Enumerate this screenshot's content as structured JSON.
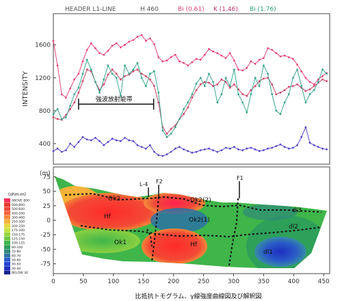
{
  "chart_data": [
    {
      "type": "line",
      "title_parts": [
        {
          "text": "HEADER L1-LINE",
          "color": "#555555"
        },
        {
          "text": "H 460",
          "color": "#555555"
        },
        {
          "text": "Bi (0.61)",
          "color": "#e0407a"
        },
        {
          "text": "K (1.46)",
          "color": "#c03070"
        },
        {
          "text": "Bi (1.76)",
          "color": "#2a9a7a"
        }
      ],
      "ylabel": "INTENSITY",
      "yticks": [
        400,
        800,
        1200,
        1600
      ],
      "ylim": [
        150,
        1980
      ],
      "xlim": [
        0,
        460
      ],
      "annotation": "強波放射能帯",
      "annotation_range": [
        42,
        167
      ],
      "annotation_y": 880,
      "series": [
        {
          "color": "#e6457a",
          "x": [
            0,
            7,
            14,
            21,
            28,
            35,
            42,
            49,
            56,
            63,
            70,
            77,
            84,
            91,
            98,
            105,
            112,
            119,
            126,
            133,
            140,
            147,
            154,
            161,
            168,
            175,
            182,
            189,
            196,
            203,
            210,
            217,
            224,
            231,
            238,
            245,
            252,
            259,
            266,
            273,
            280,
            287,
            294,
            301,
            308,
            315,
            322,
            329,
            336,
            343,
            350,
            357,
            364,
            371,
            378,
            385,
            392,
            399,
            406,
            413,
            420,
            427,
            434,
            441,
            448,
            455
          ],
          "values": [
            1650,
            1350,
            1000,
            960,
            1070,
            1180,
            1250,
            1400,
            1540,
            1620,
            1560,
            1500,
            1480,
            1530,
            1590,
            1620,
            1570,
            1600,
            1640,
            1660,
            1700,
            1720,
            1650,
            1680,
            1610,
            1450,
            1400,
            1410,
            1450,
            1480,
            1400,
            1380,
            1350,
            1390,
            1430,
            1420,
            1480,
            1550,
            1520,
            1500,
            1470,
            1440,
            1500,
            1410,
            1300,
            1290,
            1320,
            1400,
            1370,
            1420,
            1440,
            1560,
            1540,
            1500,
            1460,
            1470,
            1450,
            1430,
            1360,
            1280,
            1200,
            1150,
            1120,
            1180,
            1220,
            1260
          ]
        },
        {
          "color": "#cc4466",
          "x": [
            0,
            7,
            14,
            21,
            28,
            35,
            42,
            49,
            56,
            63,
            70,
            77,
            84,
            91,
            98,
            105,
            112,
            119,
            126,
            133,
            140,
            147,
            154,
            161,
            168,
            175,
            182,
            189,
            196,
            203,
            210,
            217,
            224,
            231,
            238,
            245,
            252,
            259,
            266,
            273,
            280,
            287,
            294,
            301,
            308,
            315,
            322,
            329,
            336,
            343,
            350,
            357,
            364,
            371,
            378,
            385,
            392,
            399,
            406,
            413,
            420,
            427,
            434,
            441,
            448,
            455
          ],
          "values": [
            720,
            700,
            690,
            750,
            820,
            900,
            1020,
            1160,
            1300,
            1280,
            1150,
            1050,
            1120,
            1240,
            1300,
            1250,
            1180,
            1220,
            1240,
            1280,
            1300,
            1250,
            1220,
            1180,
            1100,
            900,
            600,
            520,
            580,
            620,
            700,
            760,
            840,
            960,
            1050,
            1120,
            1150,
            1140,
            1100,
            1120,
            1180,
            1150,
            1080,
            1120,
            1060,
            1000,
            980,
            1050,
            1100,
            1160,
            1190,
            1200,
            1120,
            1000,
            1020,
            1050,
            1090,
            1100,
            1120,
            1080,
            1040,
            1060,
            1100,
            1140,
            1180,
            1160
          ]
        },
        {
          "color": "#3aa58e",
          "x": [
            0,
            7,
            14,
            21,
            28,
            35,
            42,
            49,
            56,
            63,
            70,
            77,
            84,
            91,
            98,
            105,
            112,
            119,
            126,
            133,
            140,
            147,
            154,
            161,
            168,
            175,
            182,
            189,
            196,
            203,
            210,
            217,
            224,
            231,
            238,
            245,
            252,
            259,
            266,
            273,
            280,
            287,
            294,
            301,
            308,
            315,
            322,
            329,
            336,
            343,
            350,
            357,
            364,
            371,
            378,
            385,
            392,
            399,
            406,
            413,
            420,
            427,
            434,
            441,
            448,
            455
          ],
          "values": [
            760,
            820,
            700,
            720,
            860,
            1000,
            1080,
            1250,
            1420,
            1300,
            1150,
            1020,
            1180,
            1350,
            1250,
            1200,
            980,
            1350,
            1250,
            1300,
            1380,
            1200,
            1100,
            1250,
            1280,
            1020,
            560,
            480,
            520,
            600,
            700,
            820,
            900,
            1000,
            1130,
            1200,
            1100,
            1250,
            1150,
            900,
            1000,
            1200,
            1100,
            1300,
            1000,
            900,
            780,
            1000,
            1200,
            1100,
            1350,
            1250,
            1000,
            800,
            760,
            900,
            1000,
            1200,
            1300,
            1100,
            900,
            1000,
            1050,
            1150,
            1300,
            1250
          ]
        },
        {
          "color": "#5548c8",
          "x": [
            0,
            7,
            14,
            21,
            28,
            35,
            42,
            49,
            56,
            63,
            70,
            77,
            84,
            91,
            98,
            105,
            112,
            119,
            126,
            133,
            140,
            147,
            154,
            161,
            168,
            175,
            182,
            189,
            196,
            203,
            210,
            217,
            224,
            231,
            238,
            245,
            252,
            259,
            266,
            273,
            280,
            287,
            294,
            301,
            308,
            315,
            322,
            329,
            336,
            343,
            350,
            357,
            364,
            371,
            378,
            385,
            392,
            399,
            406,
            413,
            420,
            427,
            434,
            441,
            448,
            455
          ],
          "values": [
            310,
            340,
            300,
            320,
            400,
            360,
            420,
            480,
            450,
            440,
            470,
            430,
            380,
            420,
            460,
            440,
            430,
            470,
            440,
            430,
            380,
            360,
            340,
            380,
            300,
            260,
            250,
            270,
            300,
            340,
            360,
            330,
            310,
            290,
            300,
            320,
            330,
            340,
            320,
            300,
            320,
            350,
            340,
            360,
            330,
            320,
            340,
            350,
            330,
            310,
            320,
            340,
            350,
            370,
            390,
            360,
            340,
            350,
            380,
            480,
            600,
            410,
            380,
            360,
            340,
            330
          ]
        }
      ]
    },
    {
      "type": "heatmap",
      "ylabel": "(m)",
      "xlabel": "比抵抗トモグラム、γ線強度曲線図及び解釈図",
      "xticks": [
        0,
        50,
        100,
        150,
        200,
        250,
        300,
        350,
        400,
        450
      ],
      "yticks": [
        75,
        50,
        25,
        0,
        -25,
        -50,
        -75
      ],
      "xlim": [
        0,
        460
      ],
      "ylim": [
        -92,
        85
      ],
      "legend_unit": "(ohm-m)",
      "legend": [
        {
          "label": "ABOVE 800",
          "color": "#ff2d55"
        },
        {
          "label": "600-800",
          "color": "#e7392d"
        },
        {
          "label": "500-600",
          "color": "#f04a3a"
        },
        {
          "label": "400-500",
          "color": "#f6653b"
        },
        {
          "label": "300-400",
          "color": "#f88a3c"
        },
        {
          "label": "250-300",
          "color": "#f6b23a"
        },
        {
          "label": "200-250",
          "color": "#e9d63c"
        },
        {
          "label": "175-200",
          "color": "#c6e23e"
        },
        {
          "label": "150-175",
          "color": "#99d63f"
        },
        {
          "label": "125-150",
          "color": "#6cc842"
        },
        {
          "label": "100-125",
          "color": "#3fb54a"
        },
        {
          "label": "80-100",
          "color": "#2ea05a"
        },
        {
          "label": "70-80",
          "color": "#2f8a78"
        },
        {
          "label": "60-70",
          "color": "#2c72a3"
        },
        {
          "label": "50-60",
          "color": "#2a5ac8"
        },
        {
          "label": "40-50",
          "color": "#2444d6"
        },
        {
          "label": "30-40",
          "color": "#1d2fbf"
        },
        {
          "label": "BELOW 30",
          "color": "#162090"
        }
      ],
      "zones": [
        "Ok2",
        "Hf",
        "Ok1",
        "Ok2(2)",
        "Ok2(1)",
        "Hf",
        "dl3",
        "dl2",
        "dl1"
      ],
      "markers": [
        "L-4",
        "F2",
        "F1"
      ]
    }
  ]
}
